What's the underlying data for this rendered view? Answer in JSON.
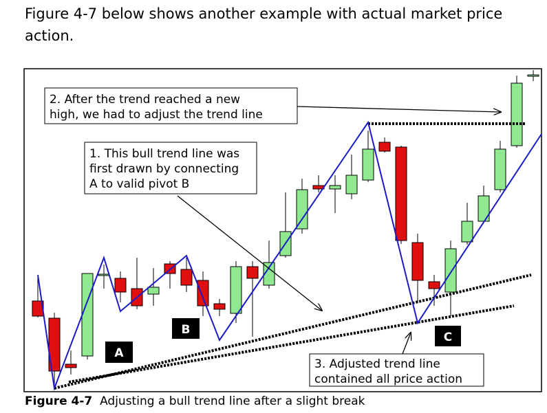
{
  "intro": "Figure 4-7 below shows another example with actual market price action.",
  "figure": {
    "note_2": [
      "2. After the trend reached a new",
      "high, we had to adjust the trend line"
    ],
    "note_1": [
      "1. This bull trend line was",
      "first drawn by connecting",
      "A to valid pivot B"
    ],
    "note_3": [
      "3. Adjusted trend line",
      "contained all price action"
    ],
    "labels": [
      "A",
      "B",
      "C"
    ]
  },
  "caption": {
    "number": "Figure 4-7",
    "text": "Adjusting a bull trend line after a slight break"
  }
}
